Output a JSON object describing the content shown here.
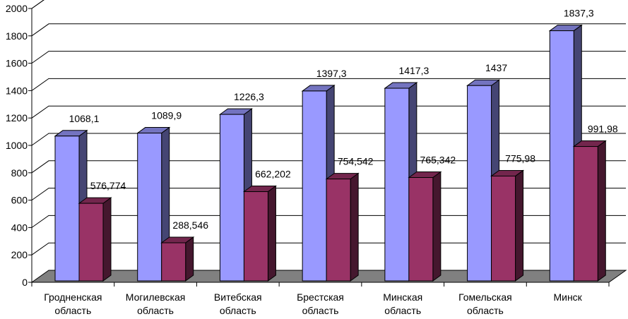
{
  "chart_data": {
    "type": "bar",
    "categories": [
      [
        "Гродненская",
        "область"
      ],
      [
        "Могилевская",
        "область"
      ],
      [
        "Витебская",
        "область"
      ],
      [
        "Брестская",
        "область"
      ],
      [
        "Минская",
        "область"
      ],
      [
        "Гомельская",
        "область"
      ],
      [
        "Минск"
      ]
    ],
    "series": [
      {
        "values": [
          1068.1,
          1089.9,
          1226.3,
          1397.3,
          1417.3,
          1437,
          1837.3
        ],
        "labels": [
          "1068,1",
          "1089,9",
          "1226,3",
          "1397,3",
          "1417,3",
          "1437",
          "1837,3"
        ],
        "color": "#9999ff"
      },
      {
        "values": [
          576.774,
          288.546,
          662.202,
          754.542,
          765.342,
          775.98,
          991.98
        ],
        "labels": [
          "576,774",
          "288,546",
          "662,202",
          "754,542",
          "765,342",
          "775,98",
          "991,98"
        ],
        "color": "#993366"
      }
    ],
    "yticks": [
      "0",
      "200",
      "400",
      "600",
      "800",
      "1000",
      "1200",
      "1400",
      "1600",
      "1800",
      "2000"
    ],
    "ylim": [
      0,
      2000
    ],
    "grid": true,
    "style": "3d-clustered-column",
    "floor_color": "#808080"
  }
}
